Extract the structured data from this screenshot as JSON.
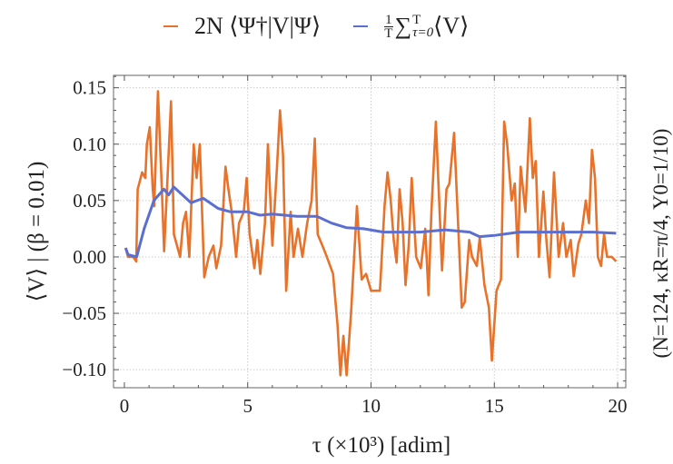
{
  "chart_data": {
    "type": "line",
    "title": "",
    "xlabel": "τ (×10³) [adim]",
    "ylabel": "⟨V⟩ | (β = 0.01)",
    "right_label": "(N=124, κR=π/4, Υ0=1/10)",
    "xlim": [
      -0.44,
      20.33
    ],
    "ylim": [
      -0.116,
      0.161
    ],
    "grid": true,
    "legend_placement": "top",
    "x_ticks": [
      "0",
      "5",
      "10",
      "15",
      "20"
    ],
    "y_ticks": [
      "0.15",
      "0.10",
      "0.05",
      "0.00",
      "−0.05",
      "−0.10"
    ],
    "legend": [
      {
        "text": "2N ⟨Ψ†|V|Ψ⟩"
      },
      {
        "num": "1",
        "den": "T",
        "sum": "∑",
        "upper": "T",
        "lower": "τ=0",
        "tail": "⟨V⟩"
      }
    ],
    "series": [
      {
        "color": "#e8722a",
        "points": [
          [
            0.05,
            0.008
          ],
          [
            0.15,
            0.0
          ],
          [
            0.36,
            0.0
          ],
          [
            0.48,
            -0.004
          ],
          [
            0.54,
            0.06
          ],
          [
            0.72,
            0.075
          ],
          [
            0.85,
            0.07
          ],
          [
            0.91,
            0.1
          ],
          [
            1.03,
            0.115
          ],
          [
            1.15,
            0.06
          ],
          [
            1.21,
            0.045
          ],
          [
            1.36,
            0.147
          ],
          [
            1.52,
            0.06
          ],
          [
            1.61,
            0.005
          ],
          [
            1.77,
            0.08
          ],
          [
            1.89,
            0.138
          ],
          [
            2.01,
            0.02
          ],
          [
            2.26,
            0.0
          ],
          [
            2.38,
            0.03
          ],
          [
            2.5,
            0.04
          ],
          [
            2.63,
            0.0
          ],
          [
            2.81,
            0.1
          ],
          [
            2.93,
            0.07
          ],
          [
            3.06,
            0.1
          ],
          [
            3.24,
            -0.018
          ],
          [
            3.42,
            0.0
          ],
          [
            3.61,
            0.01
          ],
          [
            3.73,
            -0.01
          ],
          [
            3.92,
            0.01
          ],
          [
            4.1,
            0.08
          ],
          [
            4.22,
            0.06
          ],
          [
            4.35,
            0.04
          ],
          [
            4.53,
            0.0
          ],
          [
            4.65,
            0.03
          ],
          [
            4.84,
            0.04
          ],
          [
            4.96,
            0.07
          ],
          [
            5.08,
            0.02
          ],
          [
            5.27,
            -0.01
          ],
          [
            5.39,
            0.015
          ],
          [
            5.51,
            -0.015
          ],
          [
            5.7,
            0.03
          ],
          [
            5.82,
            0.1
          ],
          [
            6.0,
            0.01
          ],
          [
            6.19,
            0.08
          ],
          [
            6.31,
            0.13
          ],
          [
            6.43,
            0.09
          ],
          [
            6.56,
            -0.03
          ],
          [
            6.74,
            0.04
          ],
          [
            6.86,
            0.0
          ],
          [
            7.04,
            0.025
          ],
          [
            7.22,
            0.0
          ],
          [
            7.41,
            0.03
          ],
          [
            7.59,
            0.05
          ],
          [
            7.72,
            0.105
          ],
          [
            7.84,
            0.02
          ],
          [
            8.03,
            0.01
          ],
          [
            8.21,
            0.0
          ],
          [
            8.46,
            -0.015
          ],
          [
            8.64,
            -0.06
          ],
          [
            8.76,
            -0.105
          ],
          [
            8.88,
            -0.07
          ],
          [
            9.01,
            -0.105
          ],
          [
            9.19,
            -0.05
          ],
          [
            9.43,
            0.045
          ],
          [
            9.62,
            -0.02
          ],
          [
            9.8,
            -0.015
          ],
          [
            10.0,
            -0.03
          ],
          [
            10.36,
            -0.03
          ],
          [
            10.55,
            0.045
          ],
          [
            10.67,
            0.075
          ],
          [
            10.8,
            0.05
          ],
          [
            10.92,
            0.015
          ],
          [
            11.04,
            -0.005
          ],
          [
            11.16,
            0.06
          ],
          [
            11.28,
            0.03
          ],
          [
            11.4,
            -0.025
          ],
          [
            11.53,
            0.01
          ],
          [
            11.65,
            0.07
          ],
          [
            11.83,
            0.0
          ],
          [
            12.02,
            -0.01
          ],
          [
            12.2,
            0.025
          ],
          [
            12.33,
            -0.034
          ],
          [
            12.45,
            0.04
          ],
          [
            12.63,
            0.12
          ],
          [
            12.82,
            0.02
          ],
          [
            12.88,
            -0.012
          ],
          [
            13.06,
            0.06
          ],
          [
            13.18,
            0.065
          ],
          [
            13.37,
            0.11
          ],
          [
            13.55,
            0.02
          ],
          [
            13.68,
            -0.045
          ],
          [
            13.8,
            -0.04
          ],
          [
            13.98,
            0.015
          ],
          [
            14.1,
            0.0
          ],
          [
            14.29,
            -0.008
          ],
          [
            14.41,
            0.017
          ],
          [
            14.6,
            -0.025
          ],
          [
            14.78,
            -0.045
          ],
          [
            14.9,
            -0.092
          ],
          [
            15.09,
            -0.03
          ],
          [
            15.27,
            -0.02
          ],
          [
            15.4,
            0.12
          ],
          [
            15.52,
            0.1
          ],
          [
            15.7,
            0.05
          ],
          [
            15.83,
            0.065
          ],
          [
            15.95,
            0.0
          ],
          [
            16.07,
            0.08
          ],
          [
            16.26,
            0.04
          ],
          [
            16.44,
            0.123
          ],
          [
            16.56,
            0.07
          ],
          [
            16.68,
            0.085
          ],
          [
            16.81,
            0.0
          ],
          [
            16.99,
            0.058
          ],
          [
            17.11,
            0.015
          ],
          [
            17.24,
            -0.018
          ],
          [
            17.42,
            0.075
          ],
          [
            17.61,
            0.0
          ],
          [
            17.79,
            0.03
          ],
          [
            17.92,
            0.0
          ],
          [
            18.1,
            0.015
          ],
          [
            18.22,
            -0.017
          ],
          [
            18.41,
            0.012
          ],
          [
            18.53,
            0.02
          ],
          [
            18.71,
            0.05
          ],
          [
            18.84,
            0.03
          ],
          [
            18.96,
            0.095
          ],
          [
            19.08,
            0.07
          ],
          [
            19.2,
            0.0
          ],
          [
            19.33,
            -0.008
          ],
          [
            19.45,
            0.02
          ],
          [
            19.57,
            0.0
          ],
          [
            19.76,
            0.0
          ],
          [
            19.94,
            -0.004
          ]
        ]
      },
      {
        "color": "#5a6fd0",
        "points": [
          [
            0.05,
            0.008
          ],
          [
            0.15,
            0.002
          ],
          [
            0.5,
            0.0
          ],
          [
            0.8,
            0.025
          ],
          [
            1.2,
            0.05
          ],
          [
            1.6,
            0.06
          ],
          [
            1.8,
            0.055
          ],
          [
            2.0,
            0.062
          ],
          [
            2.2,
            0.058
          ],
          [
            2.7,
            0.048
          ],
          [
            3.2,
            0.052
          ],
          [
            3.8,
            0.043
          ],
          [
            4.3,
            0.04
          ],
          [
            5.0,
            0.04
          ],
          [
            5.5,
            0.037
          ],
          [
            6.0,
            0.038
          ],
          [
            7.0,
            0.036
          ],
          [
            7.8,
            0.036
          ],
          [
            8.4,
            0.03
          ],
          [
            9.0,
            0.026
          ],
          [
            9.7,
            0.025
          ],
          [
            10.5,
            0.022
          ],
          [
            11.0,
            0.022
          ],
          [
            12.0,
            0.022
          ],
          [
            13.0,
            0.024
          ],
          [
            14.0,
            0.022
          ],
          [
            14.4,
            0.018
          ],
          [
            15.0,
            0.019
          ],
          [
            16.0,
            0.022
          ],
          [
            17.0,
            0.022
          ],
          [
            18.0,
            0.022
          ],
          [
            19.0,
            0.022
          ],
          [
            19.94,
            0.021
          ]
        ]
      }
    ]
  }
}
